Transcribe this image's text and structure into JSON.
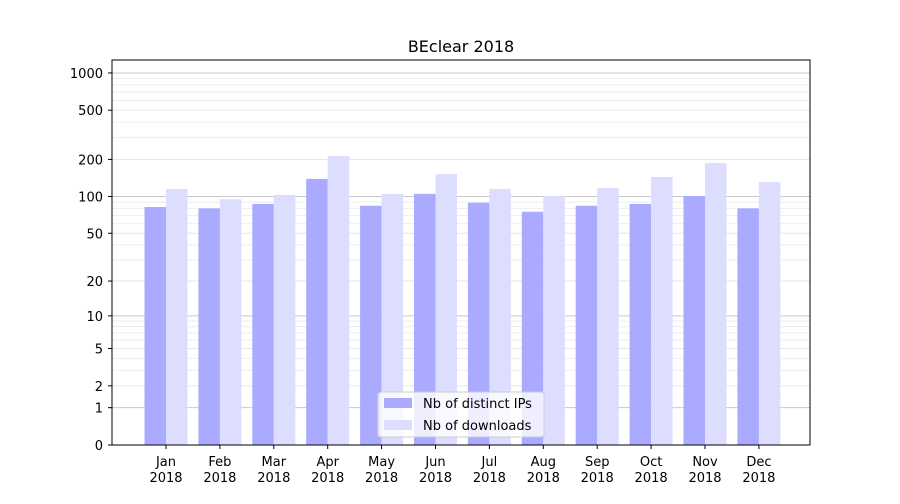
{
  "chart_data": {
    "type": "bar",
    "title": "BEclear 2018",
    "xlabel": "",
    "ylabel": "",
    "yscale": "symlog",
    "ylim": [
      0,
      1270
    ],
    "yticks": [
      0,
      1,
      2,
      5,
      10,
      20,
      50,
      100,
      200,
      500,
      1000
    ],
    "grid": true,
    "legend_position": "lower center",
    "categories": [
      "Jan\n2018",
      "Feb\n2018",
      "Mar\n2018",
      "Apr\n2018",
      "May\n2018",
      "Jun\n2018",
      "Jul\n2018",
      "Aug\n2018",
      "Sep\n2018",
      "Oct\n2018",
      "Nov\n2018",
      "Dec\n2018"
    ],
    "series": [
      {
        "name": "Nb of distinct IPs",
        "color": "#aaaaff",
        "values": [
          82,
          80,
          87,
          139,
          84,
          105,
          89,
          75,
          84,
          87,
          101,
          80
        ]
      },
      {
        "name": "Nb of downloads",
        "color": "#ddddff",
        "values": [
          115,
          95,
          103,
          213,
          105,
          152,
          115,
          101,
          117,
          144,
          187,
          131
        ]
      }
    ]
  }
}
